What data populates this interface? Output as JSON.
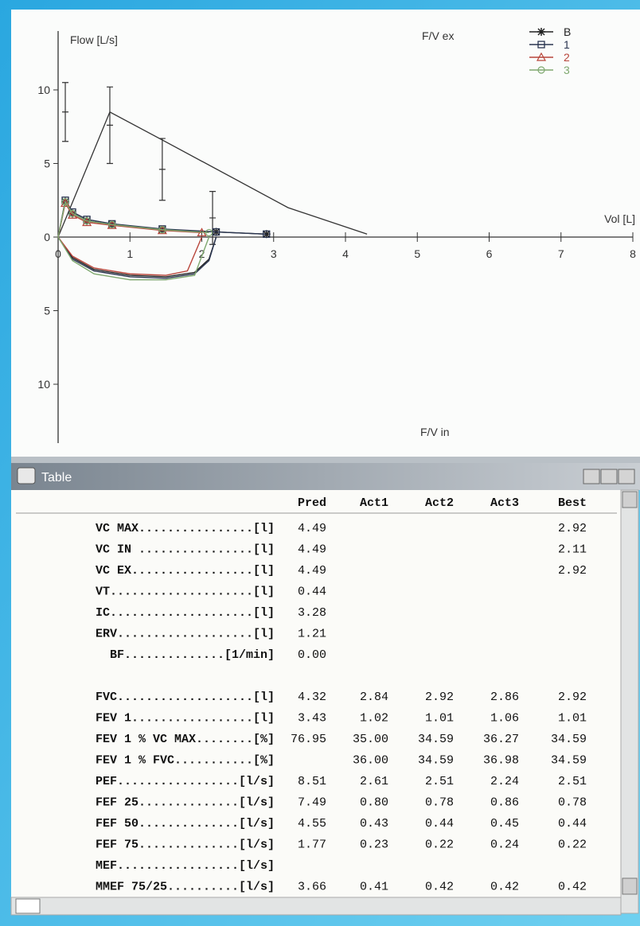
{
  "chart_data": {
    "type": "line",
    "y_label": "Flow [L/s]",
    "x_label": "Vol [L]",
    "top_label": "F/V ex",
    "bottom_label": "F/V in",
    "xlim": [
      0,
      8
    ],
    "xticks": [
      0,
      1,
      2,
      3,
      4,
      5,
      6,
      7,
      8
    ],
    "ylim": [
      -14,
      14
    ],
    "yticks": [
      {
        "value": -10,
        "label": "10"
      },
      {
        "value": -5,
        "label": "5"
      },
      0,
      5,
      10
    ],
    "legend": "top-right",
    "series": [
      {
        "name": "B",
        "color": "#222222",
        "marker": "asterisk",
        "x": [
          0,
          0.1,
          0.2,
          0.4,
          0.75,
          1.45,
          2.2,
          2.9,
          3.0,
          0,
          0.2,
          0.5,
          1.0,
          1.5,
          1.9,
          2.1,
          2.2
        ],
        "values": [
          0,
          2.4,
          1.6,
          1.1,
          0.85,
          0.5,
          0.35,
          0.2,
          null,
          0,
          -1.4,
          -2.2,
          -2.6,
          -2.7,
          -2.4,
          -1.5,
          0
        ]
      },
      {
        "name": "1",
        "color": "#2a3550",
        "marker": "square",
        "x": [
          0,
          0.1,
          0.2,
          0.4,
          0.75,
          1.45,
          2.2,
          2.9,
          3.0,
          0,
          0.2,
          0.5,
          1.0,
          1.5,
          1.9,
          2.1,
          2.2
        ],
        "values": [
          0,
          2.5,
          1.7,
          1.2,
          0.9,
          0.55,
          0.35,
          0.2,
          null,
          0,
          -1.5,
          -2.3,
          -2.7,
          -2.8,
          -2.5,
          -1.6,
          0
        ]
      },
      {
        "name": "2",
        "color": "#b8453a",
        "marker": "triangle",
        "x": [
          0,
          0.1,
          0.2,
          0.4,
          0.75,
          1.45,
          2.0,
          2.1,
          0,
          0.2,
          0.5,
          1.0,
          1.5,
          1.8,
          2.0
        ],
        "values": [
          0,
          2.3,
          1.5,
          1.0,
          0.8,
          0.45,
          0.3,
          null,
          0,
          -1.3,
          -2.1,
          -2.5,
          -2.6,
          -2.3,
          0
        ]
      },
      {
        "name": "3",
        "color": "#7fa86f",
        "marker": "circle",
        "x": [
          0,
          0.1,
          0.2,
          0.4,
          0.75,
          1.45,
          2.1,
          2.2,
          0,
          0.2,
          0.5,
          1.0,
          1.5,
          1.9,
          2.1
        ],
        "values": [
          0,
          2.4,
          1.6,
          1.1,
          0.85,
          0.5,
          0.3,
          null,
          0,
          -1.6,
          -2.5,
          -2.9,
          -2.9,
          -2.6,
          0
        ]
      }
    ],
    "reference": {
      "color": "#333333",
      "x": [
        0,
        0.72,
        1.45,
        3.2,
        4.3
      ],
      "values": [
        0,
        8.5,
        6.6,
        2.0,
        0.2
      ]
    },
    "error_bars": {
      "color": "#333333",
      "x": [
        0.1,
        0.72,
        1.45,
        2.15
      ],
      "values": [
        8.5,
        7.6,
        4.6,
        1.3
      ],
      "errors": [
        2.0,
        2.6,
        2.1,
        1.8
      ]
    }
  },
  "table": {
    "title": "Table",
    "header": [
      "Pred",
      "Act1",
      "Act2",
      "Act3",
      "Best"
    ],
    "rows": [
      [
        "VC MAX................[l]",
        "4.49",
        null,
        null,
        null,
        "2.92"
      ],
      [
        "VC IN ................[l]",
        "4.49",
        null,
        null,
        null,
        "2.11"
      ],
      [
        "VC EX.................[l]",
        "4.49",
        null,
        null,
        null,
        "2.92"
      ],
      [
        "VT....................[l]",
        "0.44",
        null,
        null,
        null,
        null
      ],
      [
        "IC....................[l]",
        "3.28",
        null,
        null,
        null,
        null
      ],
      [
        "ERV...................[l]",
        "1.21",
        null,
        null,
        null,
        null
      ],
      [
        "BF..............[1/min]",
        "0.00",
        null,
        null,
        null,
        null
      ],
      null,
      [
        "FVC...................[l]",
        "4.32",
        "2.84",
        "2.92",
        "2.86",
        "2.92"
      ],
      [
        "FEV 1.................[l]",
        "3.43",
        "1.02",
        "1.01",
        "1.06",
        "1.01"
      ],
      [
        "FEV 1 % VC MAX........[%]",
        "76.95",
        "35.00",
        "34.59",
        "36.27",
        "34.59"
      ],
      [
        "FEV 1 % FVC...........[%]",
        null,
        "36.00",
        "34.59",
        "36.98",
        "34.59"
      ],
      [
        "PEF.................[l/s]",
        "8.51",
        "2.61",
        "2.51",
        "2.24",
        "2.51"
      ],
      [
        "FEF 25..............[l/s]",
        "7.49",
        "0.80",
        "0.78",
        "0.86",
        "0.78"
      ],
      [
        "FEF 50..............[l/s]",
        "4.55",
        "0.43",
        "0.44",
        "0.45",
        "0.44"
      ],
      [
        "FEF 75..............[l/s]",
        "1.77",
        "0.23",
        "0.22",
        "0.24",
        "0.22"
      ],
      [
        "MEF.................[l/s]",
        null,
        null,
        null,
        null,
        null
      ],
      [
        "MMEF 75/25..........[l/s]",
        "3.66",
        "0.41",
        "0.42",
        "0.42",
        "0.42"
      ]
    ]
  }
}
